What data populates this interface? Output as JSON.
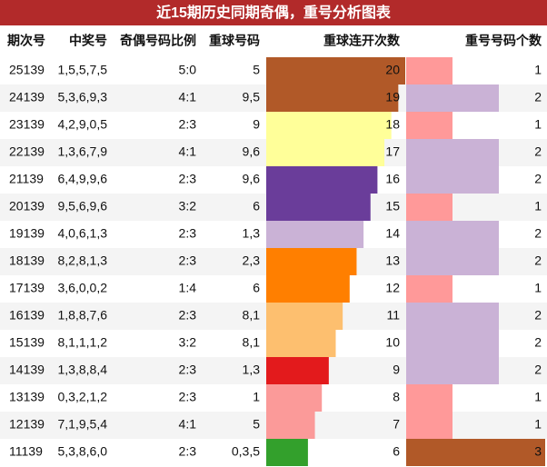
{
  "header": {
    "title": "近15期历史同期奇偶，重号分析图表"
  },
  "table": {
    "columns": [
      "期次号",
      "中奖号",
      "奇偶号码比例",
      "重球号码",
      "重球连开次数",
      "重号号码个数"
    ],
    "rows": [
      {
        "period": "25139",
        "numbers": "1,5,5,7,5",
        "ratio": "5:0",
        "repeat": "5",
        "streak": 20,
        "streak_color": "#b15928",
        "count": 1,
        "count_color": "#ff9999"
      },
      {
        "period": "24139",
        "numbers": "5,3,6,9,3",
        "ratio": "4:1",
        "repeat": "9,5",
        "streak": 19,
        "streak_color": "#b15928",
        "count": 2,
        "count_color": "#cab2d6"
      },
      {
        "period": "23139",
        "numbers": "4,2,9,0,5",
        "ratio": "2:3",
        "repeat": "9",
        "streak": 18,
        "streak_color": "#ffff99",
        "count": 1,
        "count_color": "#ff9999"
      },
      {
        "period": "22139",
        "numbers": "1,3,6,7,9",
        "ratio": "4:1",
        "repeat": "9,6",
        "streak": 17,
        "streak_color": "#ffff99",
        "count": 2,
        "count_color": "#cab2d6"
      },
      {
        "period": "21139",
        "numbers": "6,4,9,9,6",
        "ratio": "2:3",
        "repeat": "9,6",
        "streak": 16,
        "streak_color": "#6a3d9a",
        "count": 2,
        "count_color": "#cab2d6"
      },
      {
        "period": "20139",
        "numbers": "9,5,6,9,6",
        "ratio": "3:2",
        "repeat": "6",
        "streak": 15,
        "streak_color": "#6a3d9a",
        "count": 1,
        "count_color": "#ff9999"
      },
      {
        "period": "19139",
        "numbers": "4,0,6,1,3",
        "ratio": "2:3",
        "repeat": "1,3",
        "streak": 14,
        "streak_color": "#cab2d6",
        "count": 2,
        "count_color": "#cab2d6"
      },
      {
        "period": "18139",
        "numbers": "8,2,8,1,3",
        "ratio": "2:3",
        "repeat": "2,3",
        "streak": 13,
        "streak_color": "#ff7f00",
        "count": 2,
        "count_color": "#cab2d6"
      },
      {
        "period": "17139",
        "numbers": "3,6,0,0,2",
        "ratio": "1:4",
        "repeat": "6",
        "streak": 12,
        "streak_color": "#ff7f00",
        "count": 1,
        "count_color": "#ff9999"
      },
      {
        "period": "16139",
        "numbers": "1,8,8,7,6",
        "ratio": "2:3",
        "repeat": "8,1",
        "streak": 11,
        "streak_color": "#fdbf6f",
        "count": 2,
        "count_color": "#cab2d6"
      },
      {
        "period": "15139",
        "numbers": "8,1,1,1,2",
        "ratio": "3:2",
        "repeat": "8,1",
        "streak": 10,
        "streak_color": "#fdbf6f",
        "count": 2,
        "count_color": "#cab2d6"
      },
      {
        "period": "14139",
        "numbers": "1,3,8,8,4",
        "ratio": "2:3",
        "repeat": "1,3",
        "streak": 9,
        "streak_color": "#e31a1c",
        "count": 2,
        "count_color": "#cab2d6"
      },
      {
        "period": "13139",
        "numbers": "0,3,2,1,2",
        "ratio": "2:3",
        "repeat": "1",
        "streak": 8,
        "streak_color": "#fb9a99",
        "count": 1,
        "count_color": "#ff9999"
      },
      {
        "period": "12139",
        "numbers": "7,1,9,5,4",
        "ratio": "4:1",
        "repeat": "5",
        "streak": 7,
        "streak_color": "#fb9a99",
        "count": 1,
        "count_color": "#ff9999"
      },
      {
        "period": "11139",
        "numbers": "5,3,8,6,0",
        "ratio": "2:3",
        "repeat": "0,3,5",
        "streak": 6,
        "streak_color": "#33a02c",
        "count": 3,
        "count_color": "#b15928"
      }
    ]
  }
}
